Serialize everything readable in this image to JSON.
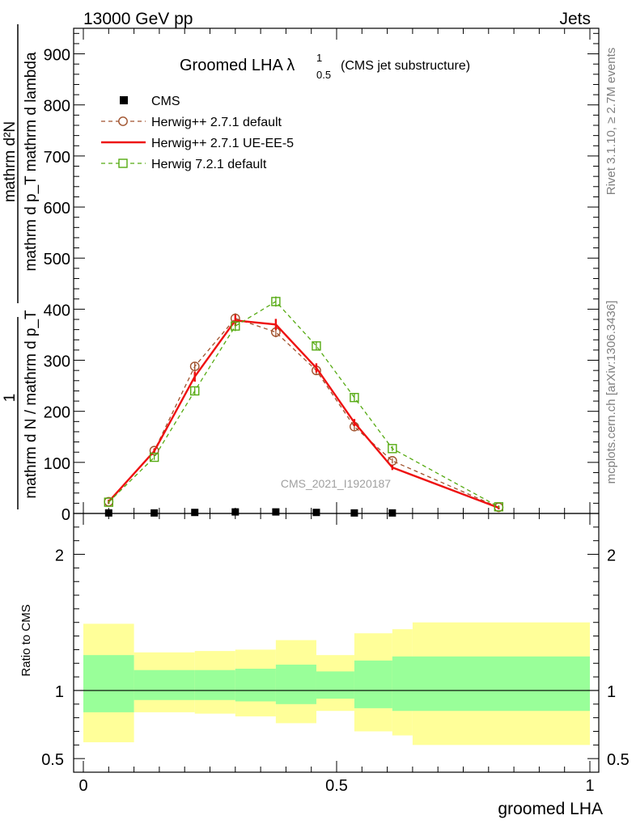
{
  "header": {
    "left": "13000 GeV pp",
    "right": "Jets"
  },
  "side_labels": {
    "rivet": "Rivet 3.1.10, ≥ 2.7M events",
    "mcplots": "mcplots.cern.ch [arXiv:1306.3436]"
  },
  "analysis_tag": "CMS_2021_I1920187",
  "chart_data": [
    {
      "type": "line",
      "title": "Groomed LHA λ",
      "title_superscript": "1",
      "title_subscript": "0.5",
      "subtitle": "(CMS jet substructure)",
      "ylabel_numerator": "mathrm d²N",
      "ylabel_denominator": "mathrm d p_T mathrm d lambda",
      "ylabel_prefix_numerator": "1",
      "ylabel_prefix_denominator": "mathrm d N / mathrm d p_T",
      "xlim": [
        0,
        1
      ],
      "ylim": [
        0,
        950
      ],
      "yticks": [
        0,
        100,
        200,
        300,
        400,
        500,
        600,
        700,
        800,
        900
      ],
      "ytick_labels": [
        "0",
        "100",
        "200",
        "300",
        "400",
        "500",
        "600",
        "700",
        "800",
        "900"
      ],
      "legend_position": "top-left",
      "x": [
        0.05,
        0.14,
        0.22,
        0.3,
        0.38,
        0.46,
        0.535,
        0.61,
        0.82
      ],
      "series": [
        {
          "name": "CMS",
          "style": "markers",
          "color": "#000000",
          "x": [
            0.05,
            0.14,
            0.22,
            0.3,
            0.38,
            0.46,
            0.535,
            0.61
          ],
          "values": [
            1,
            1,
            2,
            3,
            3,
            2,
            1,
            1
          ]
        },
        {
          "name": "Herwig++ 2.7.1 default",
          "style": "dashed-circle",
          "color": "#a0522d",
          "values": [
            23,
            123,
            288,
            382,
            355,
            280,
            170,
            103,
            12
          ],
          "errors": [
            4,
            5,
            8,
            10,
            10,
            9,
            7,
            5,
            3
          ]
        },
        {
          "name": "Herwig++ 2.7.1 UE-EE-5",
          "style": "solid",
          "color": "#ee1111",
          "values": [
            23,
            122,
            268,
            378,
            370,
            285,
            178,
            90,
            11
          ],
          "errors": [
            4,
            5,
            10,
            11,
            11,
            9,
            7,
            5,
            3
          ]
        },
        {
          "name": "Herwig 7.2.1 default",
          "style": "dashed-square",
          "color": "#55aa11",
          "values": [
            22,
            110,
            240,
            367,
            415,
            328,
            227,
            127,
            13
          ],
          "errors": [
            4,
            5,
            8,
            10,
            10,
            9,
            8,
            5,
            3
          ]
        }
      ]
    },
    {
      "type": "area",
      "ylabel": "Ratio to CMS",
      "xlabel": "groomed LHA",
      "xlim": [
        0,
        1
      ],
      "ylim": [
        0.4,
        2.3
      ],
      "xticks": [
        0,
        0.5,
        1
      ],
      "xtick_labels": [
        "0",
        "0.5",
        "1"
      ],
      "yticks": [
        0.5,
        1,
        2
      ],
      "ytick_labels": [
        "0.5",
        "1",
        "2"
      ],
      "bins": [
        [
          0,
          0.1
        ],
        [
          0.1,
          0.22
        ],
        [
          0.22,
          0.3
        ],
        [
          0.3,
          0.38
        ],
        [
          0.38,
          0.46
        ],
        [
          0.46,
          0.535
        ],
        [
          0.535,
          0.61
        ],
        [
          0.61,
          1.0
        ]
      ],
      "band_inner": {
        "color": "#99ff99",
        "lower": [
          0.84,
          0.93,
          0.93,
          0.92,
          0.9,
          0.94,
          0.87,
          0.85
        ],
        "upper": [
          1.26,
          1.15,
          1.15,
          1.16,
          1.19,
          1.14,
          1.22,
          1.25
        ]
      },
      "band_outer": {
        "color": "#ffff99",
        "lower": [
          0.62,
          0.84,
          0.83,
          0.81,
          0.76,
          0.85,
          0.7,
          0.67
        ],
        "upper": [
          1.49,
          1.28,
          1.29,
          1.3,
          1.37,
          1.26,
          1.42,
          1.45
        ]
      },
      "band_outer_tail": {
        "x": [
          0.65,
          1.0
        ],
        "lower": 0.6,
        "upper": 1.5
      },
      "reference_line": 1
    }
  ]
}
